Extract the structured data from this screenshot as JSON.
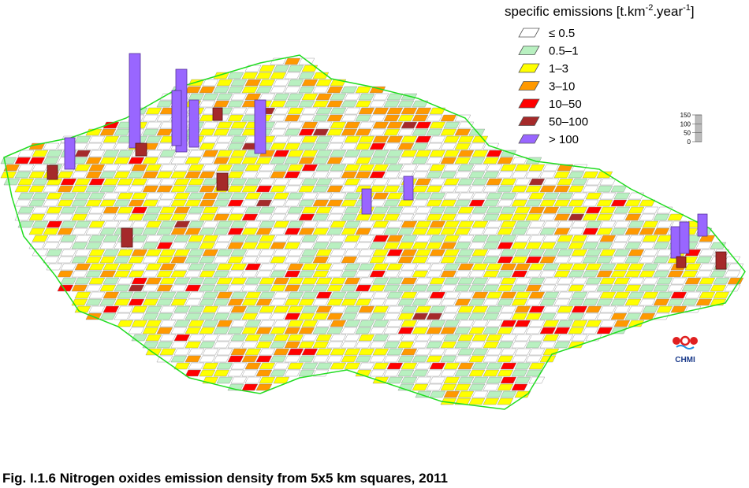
{
  "legend": {
    "title": [
      "specific emissions [t.km",
      "-2",
      ".year",
      "-1",
      "]"
    ],
    "items": [
      {
        "label": "≤ 0.5",
        "color": "#ffffff"
      },
      {
        "label": "0.5–1",
        "color": "#b8f0c0"
      },
      {
        "label": "1–3",
        "color": "#ffff00"
      },
      {
        "label": "3–10",
        "color": "#ff9900"
      },
      {
        "label": "10–50",
        "color": "#ff0000"
      },
      {
        "label": "50–100",
        "color": "#a52a2a"
      },
      {
        "label": "> 100",
        "color": "#9966ff"
      }
    ]
  },
  "scale": {
    "lim": [
      0,
      150
    ],
    "ticks": [
      0,
      50,
      100,
      150
    ]
  },
  "logo": "CHMI",
  "caption": "Fig. I.1.6  Nitrogen oxides emission density from 5x5 km squares, 2011"
}
